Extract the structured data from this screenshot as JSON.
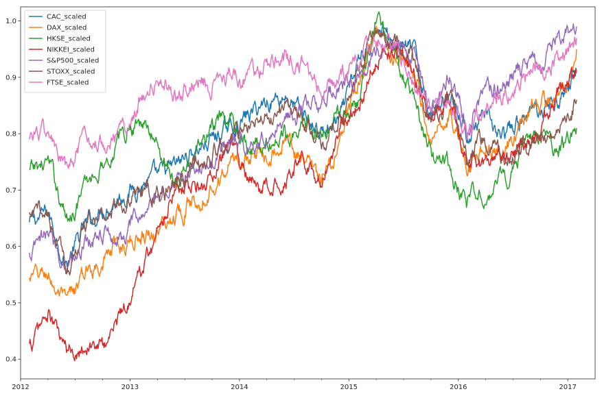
{
  "chart_data": {
    "type": "line",
    "title": "",
    "xlabel": "",
    "ylabel": "",
    "xlim": [
      2012.0,
      2017.25
    ],
    "ylim": [
      0.365,
      1.025
    ],
    "x_ticks": [
      {
        "value": 2012,
        "label": "2012"
      },
      {
        "value": 2013,
        "label": "2013"
      },
      {
        "value": 2014,
        "label": "2014"
      },
      {
        "value": 2015,
        "label": "2015"
      },
      {
        "value": 2016,
        "label": "2016"
      },
      {
        "value": 2017,
        "label": "2017"
      }
    ],
    "y_ticks": [
      {
        "value": 0.4,
        "label": "0.4"
      },
      {
        "value": 0.5,
        "label": "0.5"
      },
      {
        "value": 0.6,
        "label": "0.6"
      },
      {
        "value": 0.7,
        "label": "0.7"
      },
      {
        "value": 0.8,
        "label": "0.8"
      },
      {
        "value": 0.9,
        "label": "0.9"
      },
      {
        "value": 1.0,
        "label": "1.0"
      }
    ],
    "grid": false,
    "legend_position": "top-left",
    "series": [
      {
        "name": "CAC_scaled",
        "color": "#1f77b4",
        "x": [
          2012.08,
          2012.25,
          2012.42,
          2012.58,
          2012.75,
          2012.92,
          2013.08,
          2013.25,
          2013.42,
          2013.58,
          2013.75,
          2013.92,
          2014.08,
          2014.25,
          2014.42,
          2014.58,
          2014.75,
          2014.92,
          2015.08,
          2015.25,
          2015.42,
          2015.58,
          2015.75,
          2015.92,
          2016.08,
          2016.25,
          2016.42,
          2016.58,
          2016.75,
          2016.92,
          2017.08
        ],
        "y": [
          0.64,
          0.66,
          0.57,
          0.63,
          0.67,
          0.69,
          0.71,
          0.72,
          0.74,
          0.77,
          0.79,
          0.81,
          0.83,
          0.86,
          0.87,
          0.83,
          0.8,
          0.82,
          0.92,
          0.99,
          0.96,
          0.95,
          0.84,
          0.88,
          0.8,
          0.82,
          0.79,
          0.82,
          0.85,
          0.86,
          0.91
        ]
      },
      {
        "name": "DAX_scaled",
        "color": "#ff7f0e",
        "x": [
          2012.08,
          2012.25,
          2012.42,
          2012.58,
          2012.75,
          2012.92,
          2013.08,
          2013.25,
          2013.42,
          2013.58,
          2013.75,
          2013.92,
          2014.08,
          2014.25,
          2014.42,
          2014.58,
          2014.75,
          2014.92,
          2015.08,
          2015.25,
          2015.42,
          2015.58,
          2015.75,
          2015.92,
          2016.08,
          2016.25,
          2016.42,
          2016.58,
          2016.75,
          2016.92,
          2017.08
        ],
        "y": [
          0.54,
          0.55,
          0.49,
          0.55,
          0.58,
          0.6,
          0.62,
          0.63,
          0.66,
          0.68,
          0.71,
          0.75,
          0.76,
          0.77,
          0.79,
          0.75,
          0.71,
          0.78,
          0.88,
          0.97,
          0.93,
          0.92,
          0.79,
          0.84,
          0.75,
          0.78,
          0.76,
          0.83,
          0.85,
          0.86,
          0.95
        ]
      },
      {
        "name": "HKSE_scaled",
        "color": "#2ca02c",
        "x": [
          2012.08,
          2012.25,
          2012.42,
          2012.58,
          2012.75,
          2012.92,
          2013.08,
          2013.25,
          2013.42,
          2013.58,
          2013.75,
          2013.92,
          2014.08,
          2014.25,
          2014.42,
          2014.58,
          2014.75,
          2014.92,
          2015.08,
          2015.25,
          2015.42,
          2015.58,
          2015.75,
          2015.92,
          2016.08,
          2016.25,
          2016.42,
          2016.58,
          2016.75,
          2016.92,
          2017.08
        ],
        "y": [
          0.73,
          0.75,
          0.65,
          0.7,
          0.75,
          0.79,
          0.83,
          0.78,
          0.72,
          0.75,
          0.81,
          0.82,
          0.78,
          0.78,
          0.8,
          0.82,
          0.8,
          0.83,
          0.86,
          1.0,
          0.95,
          0.86,
          0.76,
          0.74,
          0.67,
          0.7,
          0.71,
          0.78,
          0.79,
          0.77,
          0.81
        ]
      },
      {
        "name": "NIKKEI_scaled",
        "color": "#d62728",
        "x": [
          2012.08,
          2012.25,
          2012.42,
          2012.58,
          2012.75,
          2012.92,
          2013.08,
          2013.25,
          2013.42,
          2013.58,
          2013.75,
          2013.92,
          2014.08,
          2014.25,
          2014.42,
          2014.58,
          2014.75,
          2014.92,
          2015.08,
          2015.25,
          2015.42,
          2015.58,
          2015.75,
          2015.92,
          2016.08,
          2016.25,
          2016.42,
          2016.58,
          2016.75,
          2016.92,
          2017.08
        ],
        "y": [
          0.42,
          0.48,
          0.41,
          0.43,
          0.42,
          0.48,
          0.55,
          0.62,
          0.72,
          0.7,
          0.72,
          0.78,
          0.71,
          0.7,
          0.73,
          0.76,
          0.71,
          0.82,
          0.85,
          0.94,
          0.95,
          0.92,
          0.82,
          0.86,
          0.74,
          0.75,
          0.74,
          0.78,
          0.8,
          0.87,
          0.91
        ]
      },
      {
        "name": "S&P500_scaled",
        "color": "#9467bd",
        "x": [
          2012.08,
          2012.25,
          2012.42,
          2012.58,
          2012.75,
          2012.92,
          2013.08,
          2013.25,
          2013.42,
          2013.58,
          2013.75,
          2013.92,
          2014.08,
          2014.25,
          2014.42,
          2014.58,
          2014.75,
          2014.92,
          2015.08,
          2015.25,
          2015.42,
          2015.58,
          2015.75,
          2015.92,
          2016.08,
          2016.25,
          2016.42,
          2016.58,
          2016.75,
          2016.92,
          2017.08
        ],
        "y": [
          0.58,
          0.62,
          0.57,
          0.61,
          0.63,
          0.61,
          0.65,
          0.68,
          0.72,
          0.74,
          0.75,
          0.79,
          0.78,
          0.8,
          0.83,
          0.85,
          0.84,
          0.89,
          0.9,
          0.94,
          0.95,
          0.94,
          0.85,
          0.9,
          0.82,
          0.87,
          0.89,
          0.92,
          0.93,
          0.96,
          0.99
        ]
      },
      {
        "name": "STOXX_scaled",
        "color": "#8c564b",
        "x": [
          2012.08,
          2012.25,
          2012.42,
          2012.58,
          2012.75,
          2012.92,
          2013.08,
          2013.25,
          2013.42,
          2013.58,
          2013.75,
          2013.92,
          2014.08,
          2014.25,
          2014.42,
          2014.58,
          2014.75,
          2014.92,
          2015.08,
          2015.25,
          2015.42,
          2015.58,
          2015.75,
          2015.92,
          2016.08,
          2016.25,
          2016.42,
          2016.58,
          2016.75,
          2016.92,
          2017.08
        ],
        "y": [
          0.65,
          0.66,
          0.56,
          0.63,
          0.66,
          0.68,
          0.7,
          0.69,
          0.71,
          0.74,
          0.76,
          0.79,
          0.81,
          0.83,
          0.85,
          0.81,
          0.8,
          0.82,
          0.9,
          0.98,
          0.95,
          0.93,
          0.83,
          0.86,
          0.77,
          0.79,
          0.75,
          0.78,
          0.8,
          0.82,
          0.86
        ]
      },
      {
        "name": "FTSE_scaled",
        "color": "#e377c2",
        "x": [
          2012.08,
          2012.25,
          2012.42,
          2012.58,
          2012.75,
          2012.92,
          2013.08,
          2013.25,
          2013.42,
          2013.58,
          2013.75,
          2013.92,
          2014.08,
          2014.25,
          2014.42,
          2014.58,
          2014.75,
          2014.92,
          2015.08,
          2015.25,
          2015.42,
          2015.58,
          2015.75,
          2015.92,
          2016.08,
          2016.25,
          2016.42,
          2016.58,
          2016.75,
          2016.92,
          2017.08
        ],
        "y": [
          0.8,
          0.8,
          0.73,
          0.78,
          0.79,
          0.8,
          0.86,
          0.89,
          0.87,
          0.9,
          0.89,
          0.91,
          0.9,
          0.92,
          0.93,
          0.92,
          0.88,
          0.89,
          0.93,
          0.97,
          0.95,
          0.88,
          0.84,
          0.86,
          0.8,
          0.84,
          0.86,
          0.9,
          0.91,
          0.93,
          0.97
        ]
      }
    ]
  }
}
